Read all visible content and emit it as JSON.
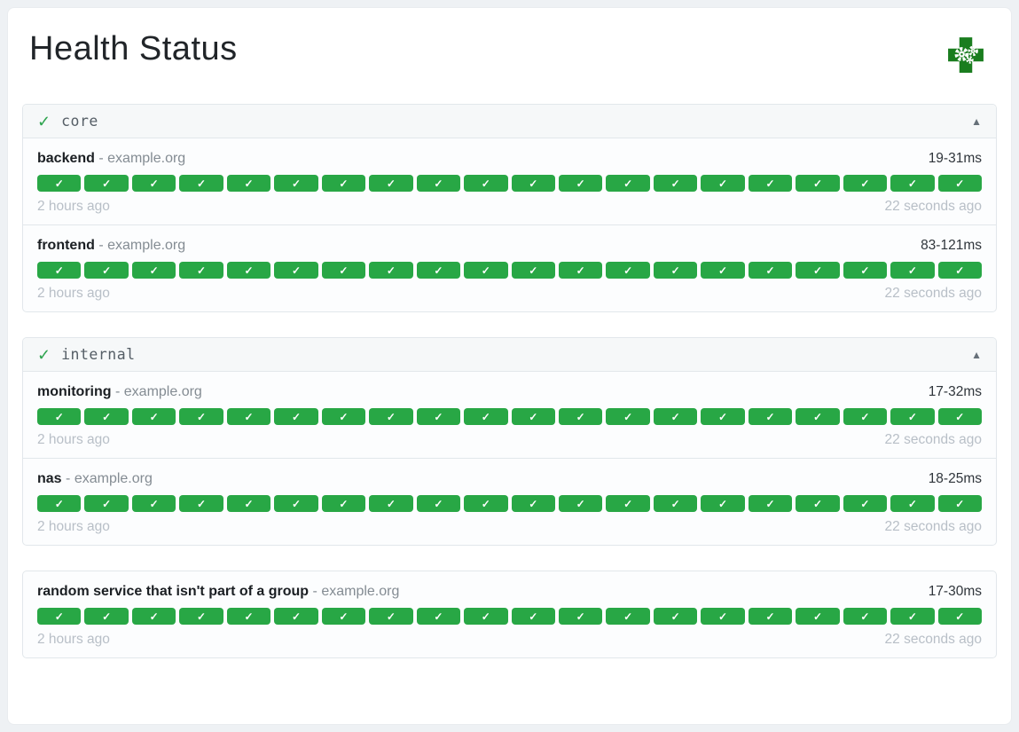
{
  "page": {
    "title": "Health Status"
  },
  "logo": {
    "name": "gatus-health-cross-logo"
  },
  "icons": {
    "group_check": "✓",
    "badge_check": "✓",
    "collapse": "▲"
  },
  "labels": {
    "separator": "-"
  },
  "colors": {
    "success_green": "#28a745",
    "logo_green": "#1a7d1f",
    "page_background": "#eef1f4",
    "timestamp_gray": "#b8bfc7"
  },
  "groups": [
    {
      "name": "core",
      "header": true,
      "status": "healthy",
      "services": [
        {
          "name": "backend",
          "host": "example.org",
          "response_time": "19-31ms",
          "oldest": "2 hours ago",
          "newest": "22 seconds ago",
          "checks": 20
        },
        {
          "name": "frontend",
          "host": "example.org",
          "response_time": "83-121ms",
          "oldest": "2 hours ago",
          "newest": "22 seconds ago",
          "checks": 20
        }
      ]
    },
    {
      "name": "internal",
      "header": true,
      "status": "healthy",
      "services": [
        {
          "name": "monitoring",
          "host": "example.org",
          "response_time": "17-32ms",
          "oldest": "2 hours ago",
          "newest": "22 seconds ago",
          "checks": 20
        },
        {
          "name": "nas",
          "host": "example.org",
          "response_time": "18-25ms",
          "oldest": "2 hours ago",
          "newest": "22 seconds ago",
          "checks": 20
        }
      ]
    },
    {
      "name": "",
      "header": false,
      "status": "healthy",
      "services": [
        {
          "name": "random service that isn't part of a group",
          "host": "example.org",
          "response_time": "17-30ms",
          "oldest": "2 hours ago",
          "newest": "22 seconds ago",
          "checks": 20
        }
      ]
    }
  ]
}
